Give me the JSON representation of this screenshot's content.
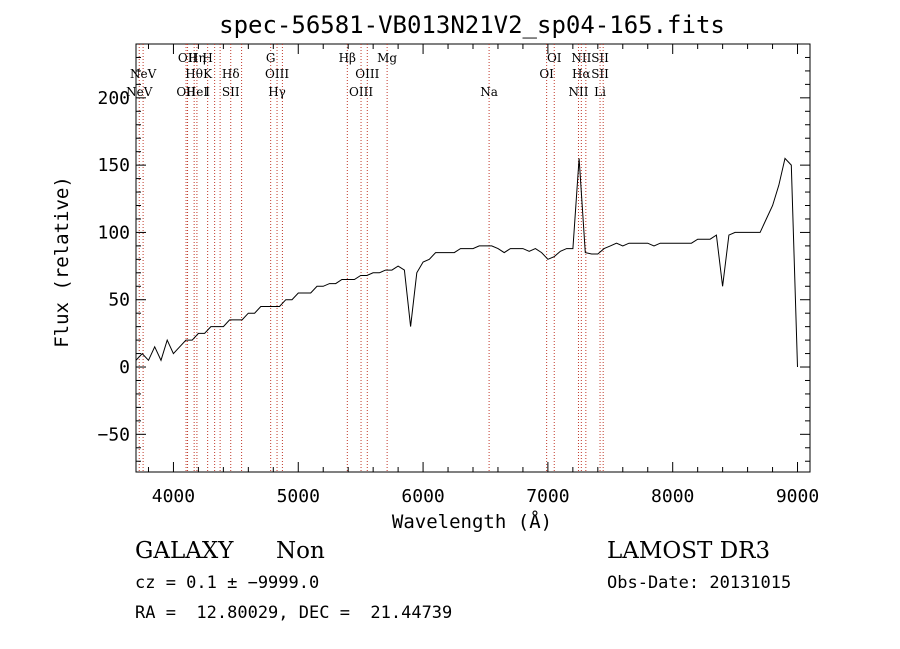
{
  "chart_data": {
    "type": "line",
    "title": "spec-56581-VB013N21V2_sp04-165.fits",
    "xlabel": "Wavelength (Å)",
    "ylabel": "Flux (relative)",
    "xlim": [
      3700,
      9100
    ],
    "ylim": [
      -78,
      240
    ],
    "x_ticks": [
      4000,
      5000,
      6000,
      7000,
      8000,
      9000
    ],
    "x_tick_labels": [
      "4000",
      "5000",
      "6000",
      "7000",
      "8000",
      "9000"
    ],
    "y_ticks": [
      -50,
      0,
      50,
      100,
      150,
      200
    ],
    "y_tick_labels": [
      "−50",
      "0",
      "50",
      "100",
      "150",
      "200"
    ],
    "line_color": "#000000",
    "marker_color": "#c0392b",
    "series": [
      {
        "name": "flux",
        "x": [
          3700,
          3750,
          3800,
          3850,
          3900,
          3950,
          4000,
          4050,
          4100,
          4150,
          4200,
          4250,
          4300,
          4350,
          4400,
          4450,
          4500,
          4550,
          4600,
          4650,
          4700,
          4750,
          4800,
          4850,
          4900,
          4950,
          5000,
          5050,
          5100,
          5150,
          5200,
          5250,
          5300,
          5350,
          5400,
          5450,
          5500,
          5550,
          5600,
          5650,
          5700,
          5750,
          5800,
          5850,
          5900,
          5950,
          6000,
          6050,
          6100,
          6150,
          6200,
          6250,
          6300,
          6350,
          6400,
          6450,
          6500,
          6550,
          6600,
          6650,
          6700,
          6750,
          6800,
          6850,
          6900,
          6950,
          7000,
          7050,
          7100,
          7150,
          7200,
          7250,
          7300,
          7350,
          7400,
          7450,
          7500,
          7550,
          7600,
          7650,
          7700,
          7750,
          7800,
          7850,
          7900,
          7950,
          8000,
          8050,
          8100,
          8150,
          8200,
          8250,
          8300,
          8350,
          8400,
          8450,
          8500,
          8550,
          8600,
          8650,
          8700,
          8750,
          8800,
          8850,
          8900,
          8950,
          9000
        ],
        "y": [
          5,
          10,
          5,
          15,
          5,
          20,
          10,
          15,
          20,
          20,
          25,
          25,
          30,
          30,
          30,
          35,
          35,
          35,
          40,
          40,
          45,
          45,
          45,
          45,
          50,
          50,
          55,
          55,
          55,
          60,
          60,
          62,
          62,
          65,
          65,
          65,
          68,
          68,
          70,
          70,
          72,
          72,
          75,
          72,
          30,
          70,
          78,
          80,
          85,
          85,
          85,
          85,
          88,
          88,
          88,
          90,
          90,
          90,
          88,
          85,
          88,
          88,
          88,
          86,
          88,
          85,
          80,
          82,
          86,
          88,
          88,
          155,
          85,
          84,
          84,
          88,
          90,
          92,
          90,
          92,
          92,
          92,
          92,
          90,
          92,
          92,
          92,
          92,
          92,
          92,
          95,
          95,
          95,
          98,
          60,
          98,
          100,
          100,
          100,
          100,
          100,
          110,
          120,
          135,
          155,
          150,
          0
        ]
      }
    ],
    "line_markers": [
      {
        "wave": 3726,
        "top": "",
        "mid": "",
        "bot": "NeV"
      },
      {
        "wave": 3757,
        "top": "",
        "mid": "NeV",
        "bot": ""
      },
      {
        "wave": 4101,
        "top": "",
        "mid": "",
        "bot": "OII"
      },
      {
        "wave": 4113,
        "top": "OII",
        "mid": "",
        "bot": ""
      },
      {
        "wave": 4166,
        "top": "",
        "mid": "Hθ",
        "bot": ""
      },
      {
        "wave": 4188,
        "top": "Hη",
        "mid": "",
        "bot": "HeI"
      },
      {
        "wave": 4274,
        "top": "H",
        "mid": "K",
        "bot": "I"
      },
      {
        "wave": 4330,
        "top": "",
        "mid": "",
        "bot": ""
      },
      {
        "wave": 4374,
        "top": "",
        "mid": "",
        "bot": ""
      },
      {
        "wave": 4459,
        "top": "",
        "mid": "Hδ",
        "bot": "SII"
      },
      {
        "wave": 4546,
        "top": "",
        "mid": "",
        "bot": ""
      },
      {
        "wave": 4779,
        "top": "G",
        "mid": "",
        "bot": ""
      },
      {
        "wave": 4830,
        "top": "",
        "mid": "OIII",
        "bot": "Hγ"
      },
      {
        "wave": 4873,
        "top": "",
        "mid": "",
        "bot": ""
      },
      {
        "wave": 5393,
        "top": "Hβ",
        "mid": "",
        "bot": ""
      },
      {
        "wave": 5503,
        "top": "",
        "mid": "",
        "bot": "OIII"
      },
      {
        "wave": 5553,
        "top": "",
        "mid": "OIII",
        "bot": ""
      },
      {
        "wave": 5712,
        "top": "Mg",
        "mid": "",
        "bot": ""
      },
      {
        "wave": 6529,
        "top": "",
        "mid": "",
        "bot": "Na"
      },
      {
        "wave": 6990,
        "top": "",
        "mid": "OI",
        "bot": ""
      },
      {
        "wave": 7051,
        "top": "OI",
        "mid": "",
        "bot": ""
      },
      {
        "wave": 7245,
        "top": "",
        "mid": "",
        "bot": "NII"
      },
      {
        "wave": 7268,
        "top": "NII",
        "mid": "Hα",
        "bot": ""
      },
      {
        "wave": 7304,
        "top": "",
        "mid": "",
        "bot": ""
      },
      {
        "wave": 7418,
        "top": "SII",
        "mid": "SII",
        "bot": "Li"
      },
      {
        "wave": 7443,
        "top": "",
        "mid": "",
        "bot": ""
      }
    ]
  },
  "info": {
    "object_class": "GALAXY",
    "subclass": "Non",
    "survey": "LAMOST DR3",
    "redshift_line": "cz = 0.1 ± −9999.0",
    "obs_date": "Obs-Date: 20131015",
    "coords": "RA =  12.80029, DEC =  21.44739"
  }
}
